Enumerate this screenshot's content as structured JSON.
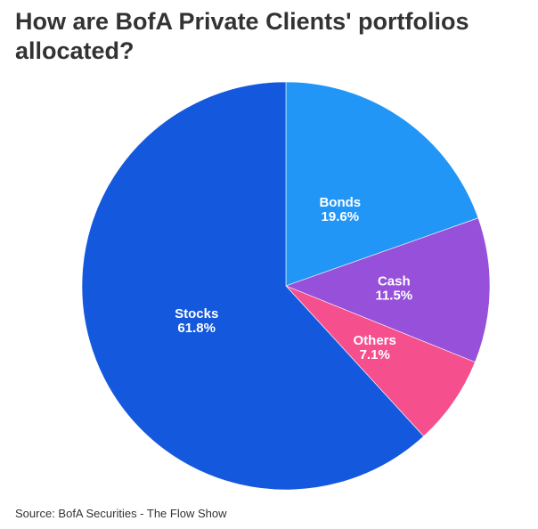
{
  "chart_data": {
    "type": "pie",
    "title": "How are BofA Private Clients' portfolios allocated?",
    "source": "Source: BofA Securities - The Flow Show",
    "slices": [
      {
        "label": "Bonds",
        "value": 19.6,
        "display": "19.6%",
        "color": "#2196f7"
      },
      {
        "label": "Cash",
        "value": 11.5,
        "display": "11.5%",
        "color": "#9650d9"
      },
      {
        "label": "Others",
        "value": 7.1,
        "display": "7.1%",
        "color": "#f5508d"
      },
      {
        "label": "Stocks",
        "value": 61.8,
        "display": "61.8%",
        "color": "#1458dd"
      }
    ],
    "start_angle_deg": 0,
    "direction": "clockwise",
    "legend": "none"
  }
}
